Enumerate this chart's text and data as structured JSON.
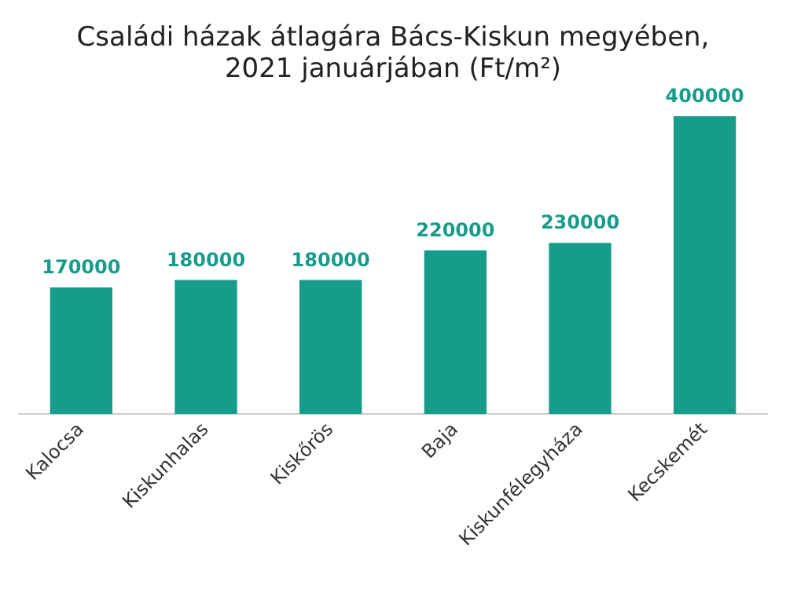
{
  "chart_data": {
    "type": "bar",
    "title": "Családi házak átlagára Bács-Kiskun megyében, 2021 januárjában (Ft/m²)",
    "categories": [
      "Kalocsa",
      "Kiskunhalas",
      "Kiskőrös",
      "Baja",
      "Kiskunfélegyháza",
      "Kecskemét"
    ],
    "values": [
      170000,
      180000,
      180000,
      220000,
      230000,
      400000
    ],
    "color": "#179b8a",
    "data_labels": true,
    "grid": false,
    "legend": false
  }
}
